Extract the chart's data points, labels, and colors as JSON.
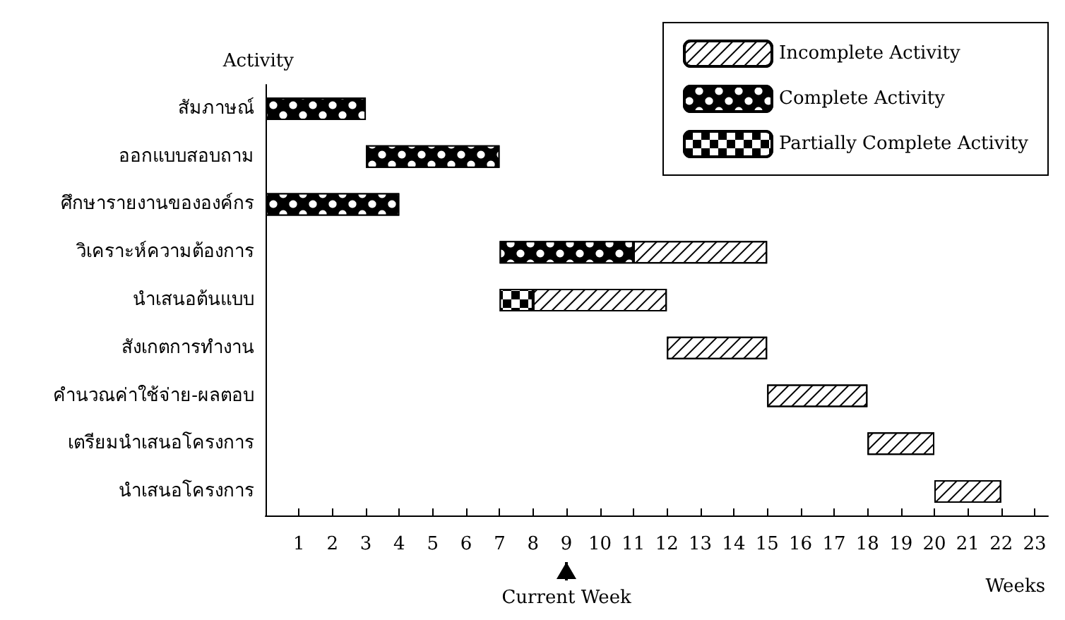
{
  "chart_data": {
    "type": "bar",
    "orientation": "horizontal",
    "xlabel": "Weeks",
    "ylabel": "Activity",
    "categories": [
      "สัมภาษณ์",
      "ออกแบบสอบถาม",
      "ศึกษารายงานขององค์กร",
      "วิเคราะห์ความต้องการ",
      "นำเสนอต้นแบบ",
      "สังเกตการทำงาน",
      "คำนวณค่าใช้จ่าย-ผลตอบ",
      "เตรียมนำเสนอโครงการ",
      "นำเสนอโครงการ"
    ],
    "series": [
      {
        "name": "Incomplete Activity",
        "color": "#ffffff",
        "base": [
          null,
          null,
          null,
          11,
          8,
          12,
          15,
          18,
          20
        ],
        "values": [
          null,
          null,
          null,
          4,
          4,
          3,
          3,
          2,
          2
        ]
      },
      {
        "name": "Complete Activity",
        "color": "#000000",
        "base": [
          0,
          3,
          0,
          7,
          null,
          null,
          null,
          null,
          null
        ],
        "values": [
          3,
          4,
          4,
          4,
          null,
          null,
          null,
          null,
          null
        ]
      },
      {
        "name": "Partially Complete Activity",
        "color": "#000000",
        "base": [
          null,
          null,
          null,
          null,
          7,
          null,
          null,
          null,
          null
        ],
        "values": [
          null,
          null,
          null,
          null,
          1,
          null,
          null,
          null,
          null
        ]
      }
    ],
    "xlim": [
      0,
      23.4
    ],
    "xticks": [
      1,
      2,
      3,
      4,
      5,
      6,
      7,
      8,
      9,
      10,
      11,
      12,
      13,
      14,
      15,
      16,
      17,
      18,
      19,
      20,
      21,
      22,
      23
    ],
    "legend": "top right",
    "grid": false,
    "ref_lines": [
      {
        "axis": "x",
        "value": 9,
        "label": "Current Week"
      }
    ]
  }
}
